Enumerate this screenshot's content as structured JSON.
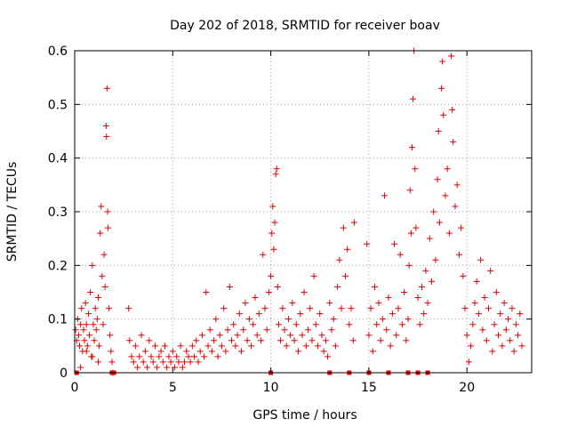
{
  "chart_data": {
    "type": "scatter",
    "title": "Day 202 of 2018, SRMTID for receiver boav",
    "xlabel": "GPS time / hours",
    "ylabel": "SRMTID / TECUs",
    "xlim": [
      0,
      23.3
    ],
    "ylim": [
      0,
      0.6
    ],
    "xticks": [
      0,
      5,
      10,
      15,
      20
    ],
    "yticks": [
      0,
      0.1,
      0.2,
      0.3,
      0.4,
      0.5,
      0.6
    ],
    "xtick_labels": [
      "0",
      "5",
      "10",
      "15",
      "20"
    ],
    "ytick_labels": [
      "0",
      "0.1",
      "0.2",
      "0.3",
      "0.4",
      "0.5",
      "0.6"
    ],
    "grid": true,
    "marker_color": "#e00000",
    "marker": "plus",
    "series": [
      {
        "name": "SRMTID",
        "points": [
          [
            0.05,
            0.08
          ],
          [
            0.1,
            0.06
          ],
          [
            0.15,
            0.1
          ],
          [
            0.2,
            0.07
          ],
          [
            0.25,
            0.05
          ],
          [
            0.3,
            0.09
          ],
          [
            0.35,
            0.12
          ],
          [
            0.4,
            0.04
          ],
          [
            0.45,
            0.08
          ],
          [
            0.5,
            0.06
          ],
          [
            0.55,
            0.13
          ],
          [
            0.6,
            0.09
          ],
          [
            0.65,
            0.05
          ],
          [
            0.7,
            0.11
          ],
          [
            0.75,
            0.07
          ],
          [
            0.8,
            0.15
          ],
          [
            0.85,
            0.03
          ],
          [
            0.9,
            0.2
          ],
          [
            0.95,
            0.09
          ],
          [
            1.0,
            0.06
          ],
          [
            1.05,
            0.12
          ],
          [
            1.1,
            0.08
          ],
          [
            1.15,
            0.1
          ],
          [
            1.2,
            0.14
          ],
          [
            1.25,
            0.05
          ],
          [
            1.3,
            0.26
          ],
          [
            1.35,
            0.31
          ],
          [
            1.4,
            0.18
          ],
          [
            1.45,
            0.09
          ],
          [
            1.5,
            0.22
          ],
          [
            1.55,
            0.16
          ],
          [
            1.6,
            0.46
          ],
          [
            1.62,
            0.44
          ],
          [
            1.65,
            0.53
          ],
          [
            1.68,
            0.3
          ],
          [
            1.7,
            0.27
          ],
          [
            1.75,
            0.12
          ],
          [
            1.8,
            0.07
          ],
          [
            1.85,
            0.04
          ],
          [
            1.9,
            0.02
          ],
          [
            1.95,
            0.0
          ],
          [
            0.6,
            0.04
          ],
          [
            0.9,
            0.03
          ],
          [
            1.2,
            0.02
          ],
          [
            0.3,
            0.01
          ],
          [
            2.75,
            0.12
          ],
          [
            2.8,
            0.06
          ],
          [
            2.9,
            0.03
          ],
          [
            3.0,
            0.02
          ],
          [
            3.1,
            0.05
          ],
          [
            3.2,
            0.01
          ],
          [
            3.3,
            0.03
          ],
          [
            3.4,
            0.07
          ],
          [
            3.5,
            0.02
          ],
          [
            3.6,
            0.04
          ],
          [
            3.7,
            0.01
          ],
          [
            3.8,
            0.06
          ],
          [
            3.9,
            0.03
          ],
          [
            4.0,
            0.02
          ],
          [
            4.1,
            0.05
          ],
          [
            4.2,
            0.01
          ],
          [
            4.3,
            0.03
          ],
          [
            4.4,
            0.04
          ],
          [
            4.5,
            0.02
          ],
          [
            4.6,
            0.05
          ],
          [
            4.7,
            0.01
          ],
          [
            4.8,
            0.03
          ],
          [
            4.9,
            0.02
          ],
          [
            5.0,
            0.04
          ],
          [
            5.1,
            0.01
          ],
          [
            5.2,
            0.03
          ],
          [
            5.3,
            0.02
          ],
          [
            5.4,
            0.05
          ],
          [
            5.5,
            0.01
          ],
          [
            5.6,
            0.02
          ],
          [
            5.7,
            0.04
          ],
          [
            5.8,
            0.03
          ],
          [
            5.9,
            0.02
          ],
          [
            6.0,
            0.05
          ],
          [
            6.1,
            0.03
          ],
          [
            6.2,
            0.06
          ],
          [
            6.3,
            0.02
          ],
          [
            6.4,
            0.04
          ],
          [
            6.5,
            0.07
          ],
          [
            6.6,
            0.03
          ],
          [
            6.7,
            0.15
          ],
          [
            6.8,
            0.05
          ],
          [
            6.9,
            0.08
          ],
          [
            7.0,
            0.04
          ],
          [
            7.1,
            0.06
          ],
          [
            7.2,
            0.1
          ],
          [
            7.3,
            0.03
          ],
          [
            7.4,
            0.07
          ],
          [
            7.5,
            0.05
          ],
          [
            7.6,
            0.12
          ],
          [
            7.7,
            0.04
          ],
          [
            7.8,
            0.08
          ],
          [
            7.9,
            0.16
          ],
          [
            8.0,
            0.06
          ],
          [
            8.1,
            0.09
          ],
          [
            8.2,
            0.05
          ],
          [
            8.3,
            0.07
          ],
          [
            8.4,
            0.11
          ],
          [
            8.5,
            0.04
          ],
          [
            8.6,
            0.08
          ],
          [
            8.7,
            0.13
          ],
          [
            8.8,
            0.06
          ],
          [
            8.9,
            0.1
          ],
          [
            9.0,
            0.05
          ],
          [
            9.1,
            0.09
          ],
          [
            9.2,
            0.14
          ],
          [
            9.3,
            0.07
          ],
          [
            9.4,
            0.11
          ],
          [
            9.5,
            0.06
          ],
          [
            9.6,
            0.22
          ],
          [
            9.7,
            0.12
          ],
          [
            9.8,
            0.08
          ],
          [
            9.9,
            0.15
          ],
          [
            10.0,
            0.18
          ],
          [
            10.05,
            0.26
          ],
          [
            10.1,
            0.31
          ],
          [
            10.15,
            0.23
          ],
          [
            10.2,
            0.28
          ],
          [
            10.25,
            0.37
          ],
          [
            10.3,
            0.38
          ],
          [
            10.35,
            0.16
          ],
          [
            10.4,
            0.09
          ],
          [
            10.5,
            0.06
          ],
          [
            10.6,
            0.12
          ],
          [
            10.7,
            0.08
          ],
          [
            10.8,
            0.05
          ],
          [
            10.9,
            0.1
          ],
          [
            11.0,
            0.07
          ],
          [
            11.1,
            0.13
          ],
          [
            11.2,
            0.06
          ],
          [
            11.3,
            0.09
          ],
          [
            11.4,
            0.04
          ],
          [
            11.5,
            0.11
          ],
          [
            11.6,
            0.07
          ],
          [
            11.7,
            0.15
          ],
          [
            11.8,
            0.05
          ],
          [
            11.9,
            0.08
          ],
          [
            12.0,
            0.12
          ],
          [
            12.1,
            0.06
          ],
          [
            12.2,
            0.18
          ],
          [
            12.3,
            0.09
          ],
          [
            12.4,
            0.05
          ],
          [
            12.5,
            0.11
          ],
          [
            12.6,
            0.07
          ],
          [
            12.7,
            0.04
          ],
          [
            12.8,
            0.06
          ],
          [
            12.9,
            0.03
          ],
          [
            13.0,
            0.13
          ],
          [
            13.1,
            0.08
          ],
          [
            13.2,
            0.1
          ],
          [
            13.3,
            0.05
          ],
          [
            13.4,
            0.16
          ],
          [
            13.5,
            0.21
          ],
          [
            13.6,
            0.12
          ],
          [
            13.7,
            0.27
          ],
          [
            13.8,
            0.18
          ],
          [
            13.9,
            0.23
          ],
          [
            14.0,
            0.09
          ],
          [
            14.1,
            0.12
          ],
          [
            14.2,
            0.06
          ],
          [
            14.25,
            0.28
          ],
          [
            14.9,
            0.24
          ],
          [
            15.0,
            0.07
          ],
          [
            15.1,
            0.12
          ],
          [
            15.2,
            0.04
          ],
          [
            15.3,
            0.16
          ],
          [
            15.4,
            0.09
          ],
          [
            15.5,
            0.13
          ],
          [
            15.6,
            0.06
          ],
          [
            15.7,
            0.1
          ],
          [
            15.8,
            0.33
          ],
          [
            15.9,
            0.08
          ],
          [
            16.0,
            0.14
          ],
          [
            16.1,
            0.05
          ],
          [
            16.2,
            0.11
          ],
          [
            16.3,
            0.24
          ],
          [
            16.4,
            0.07
          ],
          [
            16.5,
            0.12
          ],
          [
            16.6,
            0.22
          ],
          [
            16.7,
            0.09
          ],
          [
            16.8,
            0.15
          ],
          [
            16.9,
            0.06
          ],
          [
            17.0,
            0.1
          ],
          [
            17.05,
            0.2
          ],
          [
            17.1,
            0.34
          ],
          [
            17.15,
            0.26
          ],
          [
            17.2,
            0.42
          ],
          [
            17.25,
            0.51
          ],
          [
            17.3,
            0.6
          ],
          [
            17.35,
            0.38
          ],
          [
            17.4,
            0.27
          ],
          [
            17.5,
            0.14
          ],
          [
            17.6,
            0.09
          ],
          [
            17.7,
            0.16
          ],
          [
            17.8,
            0.11
          ],
          [
            17.9,
            0.19
          ],
          [
            18.0,
            0.13
          ],
          [
            18.1,
            0.25
          ],
          [
            18.2,
            0.17
          ],
          [
            18.3,
            0.3
          ],
          [
            18.4,
            0.21
          ],
          [
            18.5,
            0.36
          ],
          [
            18.55,
            0.45
          ],
          [
            18.6,
            0.28
          ],
          [
            18.7,
            0.53
          ],
          [
            18.75,
            0.58
          ],
          [
            18.8,
            0.48
          ],
          [
            18.9,
            0.33
          ],
          [
            19.0,
            0.38
          ],
          [
            19.1,
            0.26
          ],
          [
            19.2,
            0.59
          ],
          [
            19.25,
            0.49
          ],
          [
            19.3,
            0.43
          ],
          [
            19.4,
            0.31
          ],
          [
            19.5,
            0.35
          ],
          [
            19.6,
            0.22
          ],
          [
            19.7,
            0.27
          ],
          [
            19.8,
            0.18
          ],
          [
            19.9,
            0.12
          ],
          [
            20.0,
            0.07
          ],
          [
            20.1,
            0.02
          ],
          [
            20.2,
            0.05
          ],
          [
            20.3,
            0.09
          ],
          [
            20.4,
            0.13
          ],
          [
            20.5,
            0.17
          ],
          [
            20.6,
            0.11
          ],
          [
            20.7,
            0.21
          ],
          [
            20.8,
            0.08
          ],
          [
            20.9,
            0.14
          ],
          [
            21.0,
            0.06
          ],
          [
            21.1,
            0.12
          ],
          [
            21.2,
            0.19
          ],
          [
            21.3,
            0.04
          ],
          [
            21.4,
            0.09
          ],
          [
            21.5,
            0.15
          ],
          [
            21.6,
            0.07
          ],
          [
            21.7,
            0.11
          ],
          [
            21.8,
            0.05
          ],
          [
            21.9,
            0.13
          ],
          [
            22.0,
            0.08
          ],
          [
            22.1,
            0.1
          ],
          [
            22.2,
            0.06
          ],
          [
            22.3,
            0.12
          ],
          [
            22.4,
            0.04
          ],
          [
            22.5,
            0.09
          ],
          [
            22.6,
            0.07
          ],
          [
            22.7,
            0.11
          ],
          [
            22.8,
            0.05
          ]
        ]
      }
    ],
    "gap_markers_x": [
      0.1,
      1.9,
      2.0,
      10.0,
      13.0,
      14.0,
      15.0,
      16.0,
      17.0,
      17.5,
      18.0
    ]
  }
}
